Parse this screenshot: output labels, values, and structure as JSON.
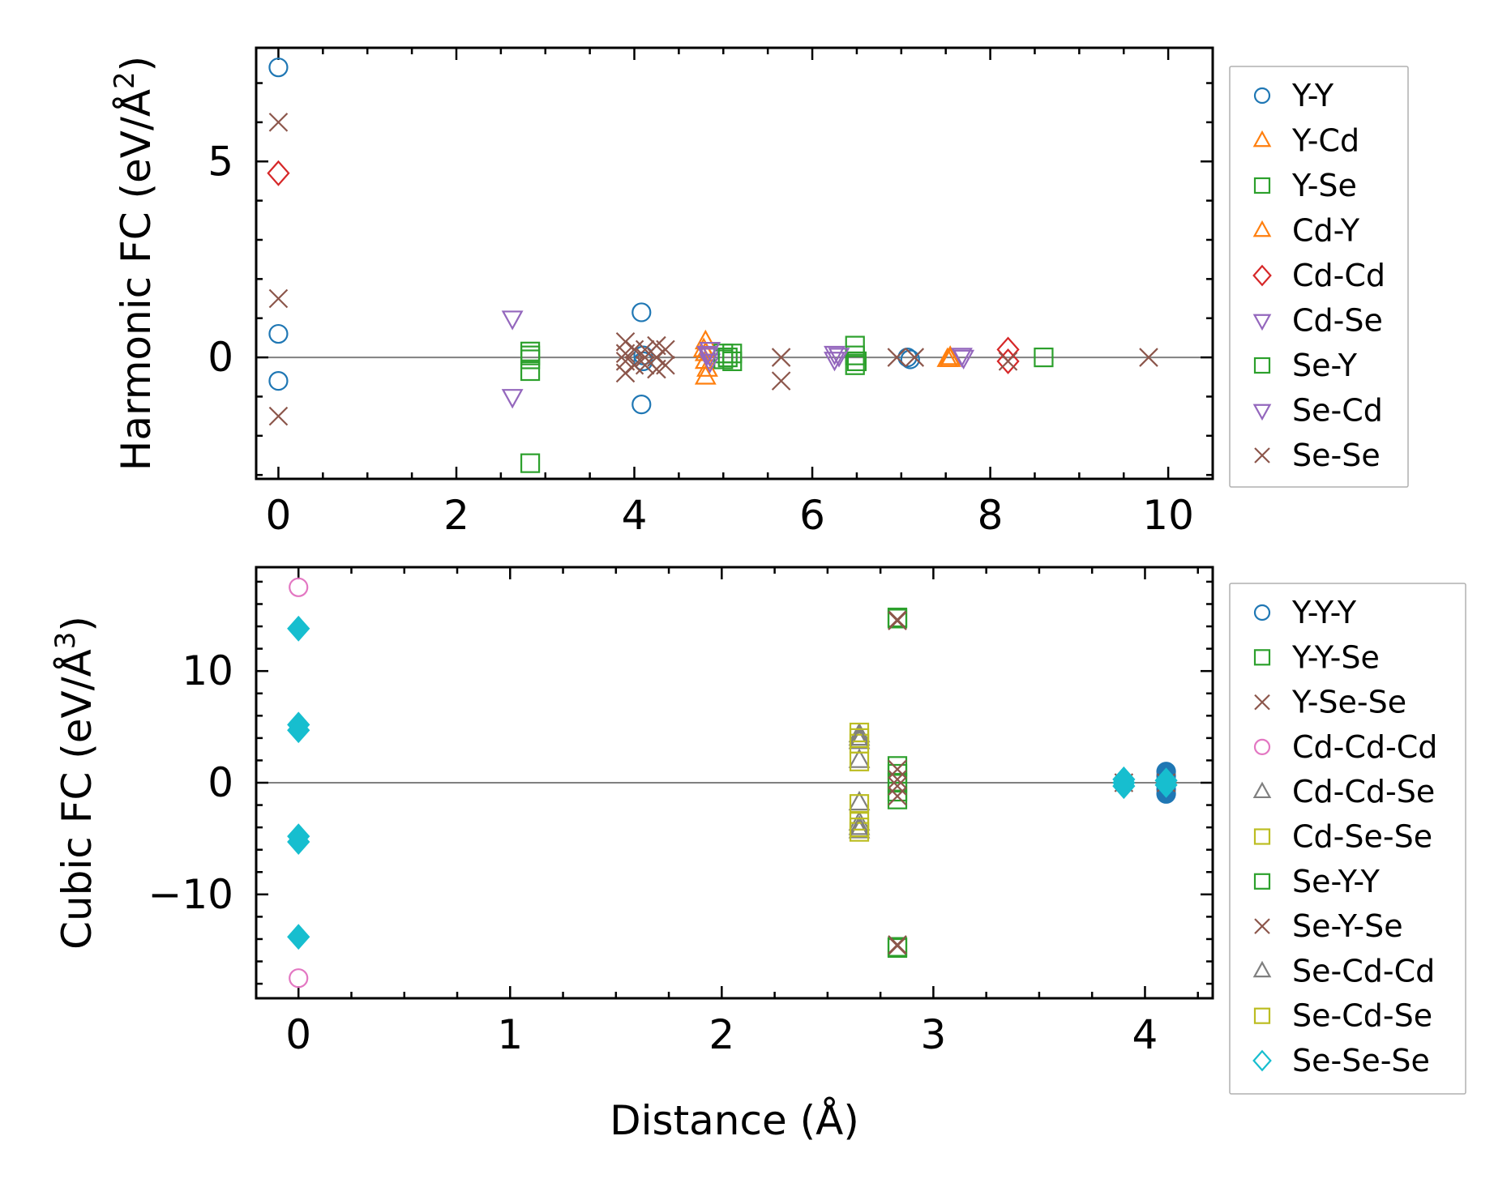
{
  "chart_data": [
    {
      "type": "scatter",
      "panel": "top",
      "ylabel_main": "Harmonic FC (eV/Å",
      "ylabel_sup": "2",
      "ylabel_close": ")",
      "xlim": [
        -0.25,
        10.5
      ],
      "ylim": [
        -3.1,
        7.9
      ],
      "xticks": [
        0,
        2,
        4,
        6,
        8,
        10
      ],
      "xtick_labels": [
        "0",
        "2",
        "4",
        "6",
        "8",
        "10"
      ],
      "xminor_step": 0.5,
      "yticks": [
        0,
        5
      ],
      "ytick_labels": [
        "0",
        "5"
      ],
      "yminor_step": 1,
      "zero_line": true,
      "legend_position": "right",
      "series": [
        {
          "name": "Y-Y",
          "marker": "circle",
          "color": "#1f77b4",
          "points": [
            [
              0,
              7.4
            ],
            [
              0,
              0.6
            ],
            [
              0,
              -0.6
            ],
            [
              4.08,
              1.15
            ],
            [
              4.08,
              -1.2
            ],
            [
              4.1,
              0.05
            ],
            [
              4.1,
              -0.1
            ],
            [
              7.07,
              0
            ],
            [
              7.1,
              -0.05
            ]
          ]
        },
        {
          "name": "Y-Cd",
          "marker": "triangle-up",
          "color": "#ff7f0e",
          "points": [
            [
              4.8,
              0.4
            ],
            [
              4.8,
              0.1
            ],
            [
              4.8,
              -0.1
            ],
            [
              4.8,
              -0.5
            ],
            [
              7.55,
              0
            ],
            [
              7.55,
              -0.05
            ]
          ]
        },
        {
          "name": "Y-Se",
          "marker": "square",
          "color": "#2ca02c",
          "points": [
            [
              2.83,
              0.15
            ],
            [
              2.83,
              -0.05
            ],
            [
              2.83,
              -0.35
            ],
            [
              2.83,
              -2.7
            ],
            [
              5.0,
              0.1
            ],
            [
              5.0,
              -0.05
            ],
            [
              5.1,
              0.1
            ],
            [
              5.1,
              -0.1
            ],
            [
              6.48,
              0.3
            ],
            [
              6.48,
              0.05
            ],
            [
              6.48,
              -0.2
            ],
            [
              8.6,
              0
            ]
          ]
        },
        {
          "name": "Cd-Y",
          "marker": "triangle-up",
          "color": "#ff7f0e",
          "points": [
            [
              4.78,
              0.2
            ],
            [
              4.82,
              -0.3
            ],
            [
              7.52,
              -0.05
            ]
          ]
        },
        {
          "name": "Cd-Cd",
          "marker": "diamond",
          "color": "#d62728",
          "points": [
            [
              0,
              4.7
            ],
            [
              8.2,
              0.2
            ],
            [
              8.2,
              -0.1
            ]
          ]
        },
        {
          "name": "Cd-Se",
          "marker": "triangle-down",
          "color": "#9467bd",
          "points": [
            [
              2.63,
              1.0
            ],
            [
              2.63,
              -1.0
            ],
            [
              4.85,
              0.2
            ],
            [
              4.85,
              0.05
            ],
            [
              4.85,
              -0.1
            ],
            [
              6.25,
              0.1
            ],
            [
              6.25,
              -0.05
            ],
            [
              7.7,
              0
            ]
          ]
        },
        {
          "name": "Se-Y",
          "marker": "square",
          "color": "#2ca02c",
          "points": [
            [
              2.83,
              0.05
            ],
            [
              5.05,
              0
            ],
            [
              6.5,
              -0.1
            ]
          ]
        },
        {
          "name": "Se-Cd",
          "marker": "triangle-down",
          "color": "#9467bd",
          "points": [
            [
              4.82,
              0.1
            ],
            [
              6.3,
              0.05
            ],
            [
              7.68,
              0.05
            ]
          ]
        },
        {
          "name": "Se-Se",
          "marker": "x",
          "color": "#8c564b",
          "points": [
            [
              0,
              6.0
            ],
            [
              0,
              1.5
            ],
            [
              0,
              -1.5
            ],
            [
              3.9,
              0.4
            ],
            [
              3.9,
              0.1
            ],
            [
              3.9,
              -0.1
            ],
            [
              3.9,
              -0.4
            ],
            [
              4.0,
              0.2
            ],
            [
              4.0,
              -0.2
            ],
            [
              4.12,
              0.2
            ],
            [
              4.12,
              0
            ],
            [
              4.12,
              -0.2
            ],
            [
              4.25,
              0.3
            ],
            [
              4.25,
              0
            ],
            [
              4.25,
              -0.3
            ],
            [
              4.35,
              0.2
            ],
            [
              4.35,
              -0.2
            ],
            [
              5.65,
              0
            ],
            [
              5.65,
              -0.6
            ],
            [
              6.95,
              0
            ],
            [
              7.15,
              0
            ],
            [
              8.2,
              -0.1
            ],
            [
              9.78,
              0
            ]
          ]
        }
      ]
    },
    {
      "type": "scatter",
      "panel": "bottom",
      "ylabel_main": "Cubic FC (eV/Å",
      "ylabel_sup": "3",
      "ylabel_close": ")",
      "xlabel": "Distance (Å)",
      "xlim": [
        -0.2,
        4.32
      ],
      "ylim": [
        -19.3,
        19.3
      ],
      "xticks": [
        0,
        1,
        2,
        3,
        4
      ],
      "xtick_labels": [
        "0",
        "1",
        "2",
        "3",
        "4"
      ],
      "xminor_step": 0.25,
      "yticks": [
        -10,
        0,
        10
      ],
      "ytick_labels": [
        "−10",
        "0",
        "10"
      ],
      "yminor_step": 2,
      "zero_line": true,
      "legend_position": "right",
      "series": [
        {
          "name": "Y-Y-Y",
          "marker": "circle",
          "color": "#1f77b4",
          "filled_points": true,
          "points": [
            [
              4.1,
              1.0
            ],
            [
              4.1,
              0.6
            ],
            [
              4.1,
              0.2
            ],
            [
              4.1,
              -0.2
            ],
            [
              4.1,
              -0.6
            ],
            [
              4.1,
              -1.0
            ],
            [
              3.9,
              0
            ]
          ]
        },
        {
          "name": "Y-Y-Se",
          "marker": "square",
          "color": "#2ca02c",
          "points": [
            [
              2.83,
              14.8
            ],
            [
              2.83,
              1.5
            ],
            [
              2.83,
              0.8
            ],
            [
              2.83,
              0
            ],
            [
              2.83,
              -0.8
            ],
            [
              2.83,
              -1.5
            ],
            [
              2.83,
              -14.8
            ]
          ]
        },
        {
          "name": "Y-Se-Se",
          "marker": "x",
          "color": "#8c564b",
          "points": [
            [
              2.83,
              14.6
            ],
            [
              2.83,
              1.2
            ],
            [
              2.83,
              0.3
            ],
            [
              2.83,
              -0.3
            ],
            [
              2.83,
              -1.2
            ],
            [
              2.83,
              -14.6
            ],
            [
              3.9,
              0
            ],
            [
              4.1,
              0
            ]
          ]
        },
        {
          "name": "Cd-Cd-Cd",
          "marker": "circle",
          "color": "#e377c2",
          "points": [
            [
              0,
              17.5
            ],
            [
              0,
              -17.5
            ]
          ]
        },
        {
          "name": "Cd-Cd-Se",
          "marker": "triangle-up",
          "color": "#7f7f7f",
          "points": [
            [
              2.65,
              4.3
            ],
            [
              2.65,
              3.7
            ],
            [
              2.65,
              2.0
            ],
            [
              2.65,
              -1.8
            ],
            [
              2.65,
              -3.6
            ],
            [
              2.65,
              -4.3
            ]
          ]
        },
        {
          "name": "Cd-Se-Se",
          "marker": "square",
          "color": "#bcbd22",
          "points": [
            [
              2.65,
              4.5
            ],
            [
              2.65,
              3.5
            ],
            [
              2.65,
              1.9
            ],
            [
              2.65,
              -1.9
            ],
            [
              2.65,
              -3.4
            ],
            [
              2.65,
              -4.4
            ]
          ]
        },
        {
          "name": "Se-Y-Y",
          "marker": "square",
          "color": "#2ca02c",
          "points": [
            [
              2.83,
              14.7
            ],
            [
              2.83,
              -14.7
            ]
          ]
        },
        {
          "name": "Se-Y-Se",
          "marker": "x",
          "color": "#8c564b",
          "points": [
            [
              2.83,
              14.5
            ],
            [
              2.83,
              -14.5
            ]
          ]
        },
        {
          "name": "Se-Cd-Cd",
          "marker": "triangle-up",
          "color": "#7f7f7f",
          "points": [
            [
              2.65,
              4.0
            ],
            [
              2.65,
              -4.0
            ]
          ]
        },
        {
          "name": "Se-Cd-Se",
          "marker": "square",
          "color": "#bcbd22",
          "points": [
            [
              2.65,
              4.0
            ],
            [
              2.65,
              -4.0
            ]
          ]
        },
        {
          "name": "Se-Se-Se",
          "marker": "diamond",
          "color": "#17becf",
          "filled_points": true,
          "points": [
            [
              0,
              13.8
            ],
            [
              0,
              5.2
            ],
            [
              0,
              4.7
            ],
            [
              0,
              -4.8
            ],
            [
              0,
              -5.3
            ],
            [
              0,
              -13.8
            ],
            [
              3.9,
              0.3
            ],
            [
              3.9,
              0
            ],
            [
              3.9,
              -0.3
            ],
            [
              4.1,
              0.2
            ],
            [
              4.1,
              -0.2
            ]
          ]
        }
      ]
    }
  ]
}
